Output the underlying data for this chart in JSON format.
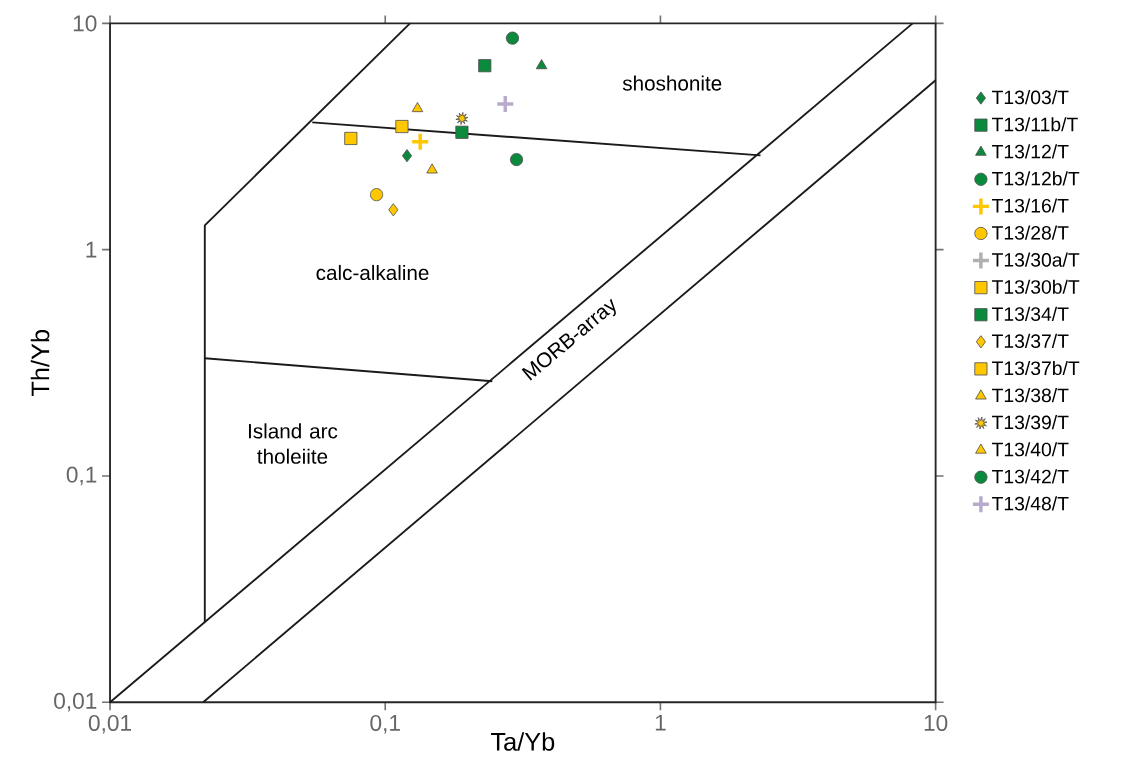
{
  "chart_data": {
    "type": "scatter",
    "xlabel": "Ta/Yb",
    "ylabel": "Th/Yb",
    "log": "xy",
    "xlim": [
      0.01,
      10
    ],
    "ylim": [
      0.01,
      10
    ],
    "xticks": [
      {
        "value": 0.01,
        "label": "0,01"
      },
      {
        "value": 0.1,
        "label": "0,1"
      },
      1,
      10
    ],
    "yticks": [
      {
        "value": 0.01,
        "label": "0,01"
      },
      {
        "value": 0.1,
        "label": "0,1"
      },
      1,
      10
    ],
    "legend": "right",
    "series": [
      {
        "name": "T13/03/T",
        "color": "#0b8a3e",
        "marker": "diamond",
        "x": [
          0.12
        ],
        "values": [
          2.6
        ]
      },
      {
        "name": "T13/11b/T",
        "color": "#0b8a3e",
        "marker": "square",
        "x": [
          0.19
        ],
        "values": [
          3.3
        ]
      },
      {
        "name": "T13/12/T",
        "color": "#0b8a3e",
        "marker": "triangle",
        "x": [
          0.37
        ],
        "values": [
          6.5
        ]
      },
      {
        "name": "T13/12b/T",
        "color": "#0b8a3e",
        "marker": "circle",
        "x": [
          0.3
        ],
        "values": [
          2.5
        ]
      },
      {
        "name": "T13/16/T",
        "color": "#ffc700",
        "marker": "cross",
        "x": [
          0.134
        ],
        "values": [
          3.0
        ]
      },
      {
        "name": "T13/28/T",
        "color": "#ffc700",
        "marker": "circle",
        "x": [
          0.093
        ],
        "values": [
          1.75
        ]
      },
      {
        "name": "T13/30a/T",
        "color": "#b0b0b0",
        "marker": "cross",
        "x": [
          null
        ],
        "values": [
          null
        ]
      },
      {
        "name": "T13/30b/T",
        "color": "#ffc700",
        "marker": "square",
        "x": [
          0.115
        ],
        "values": [
          3.5
        ]
      },
      {
        "name": "T13/34/T",
        "color": "#0b8a3e",
        "marker": "square",
        "x": [
          0.23
        ],
        "values": [
          6.5
        ]
      },
      {
        "name": "T13/37/T",
        "color": "#ffc700",
        "marker": "diamond",
        "x": [
          0.107
        ],
        "values": [
          1.5
        ]
      },
      {
        "name": "T13/37b/T",
        "color": "#ffc700",
        "marker": "square",
        "x": [
          0.075
        ],
        "values": [
          3.1
        ]
      },
      {
        "name": "T13/38/T",
        "color": "#ffc700",
        "marker": "triangle",
        "x": [
          0.148
        ],
        "values": [
          2.25
        ]
      },
      {
        "name": "T13/39/T",
        "color": "#ffc700",
        "marker": "star",
        "x": [
          0.19
        ],
        "values": [
          3.8
        ]
      },
      {
        "name": "T13/40/T",
        "color": "#ffc700",
        "marker": "triangle",
        "x": [
          0.131
        ],
        "values": [
          4.2
        ]
      },
      {
        "name": "T13/42/T",
        "color": "#0b8a3e",
        "marker": "circle",
        "x": [
          0.29
        ],
        "values": [
          8.6
        ]
      },
      {
        "name": "T13/48/T",
        "color": "#b8aacc",
        "marker": "cross",
        "x": [
          0.273
        ],
        "values": [
          4.4
        ]
      },
      {
        "type": "line",
        "color": "#1a1a1a",
        "marker": "none",
        "x": [
          0.0221,
          0.0221,
          0.123
        ],
        "values": [
          0.0226,
          1.28,
          10
        ]
      },
      {
        "type": "line",
        "color": "#1a1a1a",
        "marker": "none",
        "x": [
          0.0543,
          2.31
        ],
        "values": [
          3.65,
          2.61
        ]
      },
      {
        "type": "line",
        "color": "#1a1a1a",
        "marker": "none",
        "x": [
          0.0221,
          0.245
        ],
        "values": [
          0.331,
          0.262
        ]
      },
      {
        "type": "line",
        "color": "#1a1a1a",
        "marker": "none",
        "x": [
          0.01,
          8.25
        ],
        "values": [
          0.01,
          10
        ]
      },
      {
        "type": "line",
        "color": "#1a1a1a",
        "marker": "none",
        "x": [
          0.0218,
          10
        ],
        "values": [
          0.01,
          5.6
        ]
      }
    ],
    "annotations": [
      "shoshonite",
      "calc-alkaline",
      "Island arc tholeiite",
      "MORB-array"
    ]
  }
}
